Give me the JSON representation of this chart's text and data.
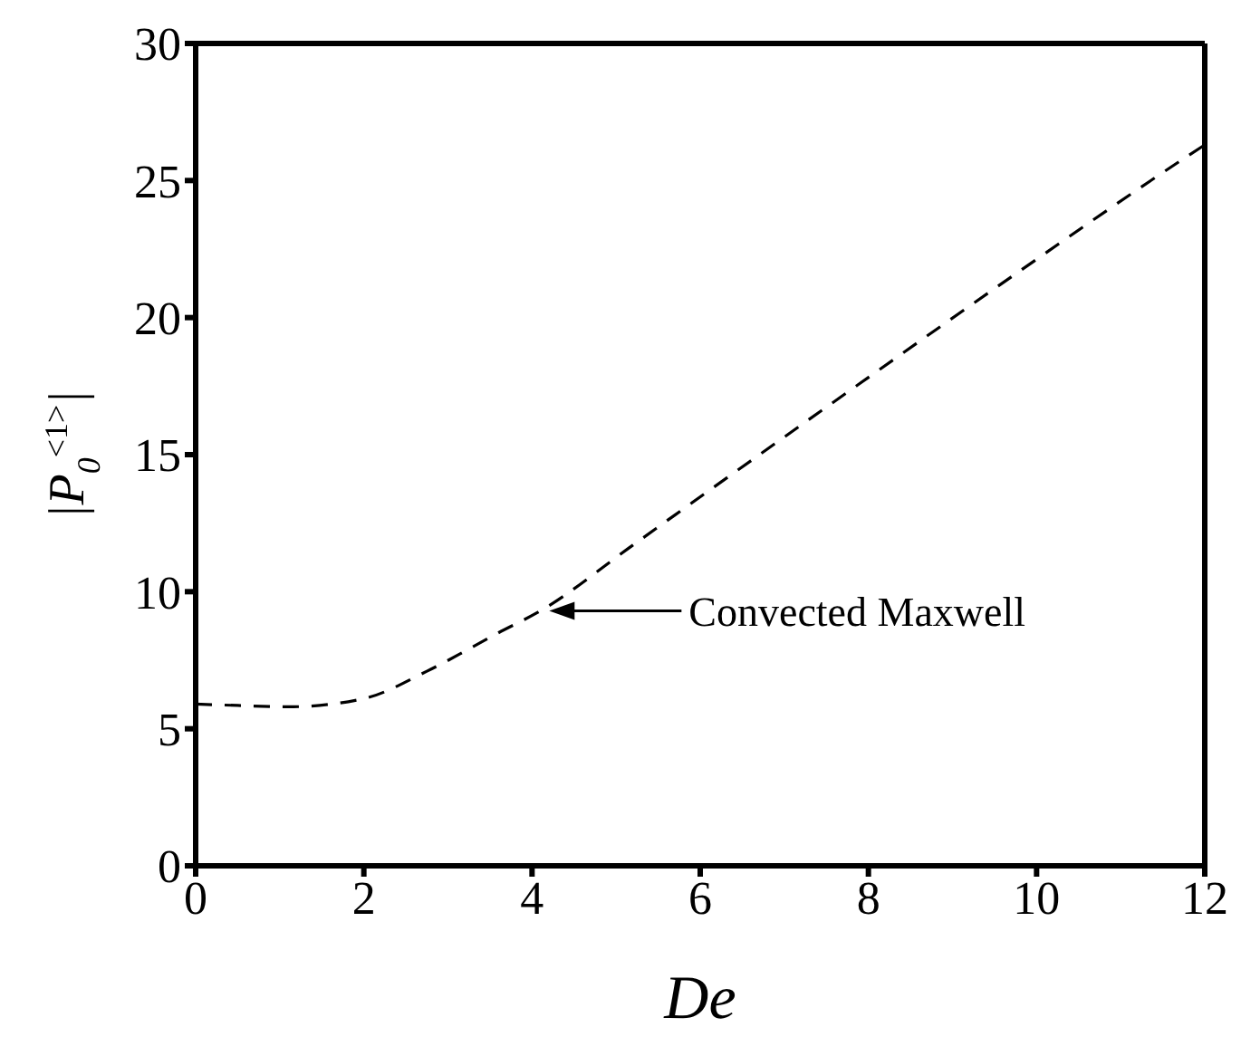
{
  "chart_data": {
    "type": "line",
    "xlabel": "De",
    "ylabel": "|P$_{0}$$^{<1>}$|",
    "x": [
      0,
      0.5,
      1.1,
      2,
      2.75,
      3.6,
      4.1,
      5.2,
      5.7,
      7.9,
      9.8,
      11.8,
      12
    ],
    "series": [
      {
        "color": "#000000",
        "line_style": "dashed",
        "values": [
          5.9,
          5.85,
          5.8,
          6.1,
          7.1,
          8.5,
          9.3,
          11.7,
          12.8,
          17.6,
          21.7,
          25.9,
          26.3
        ]
      }
    ],
    "annotations": [
      "Convected Maxwell"
    ],
    "xlim": [
      0,
      12
    ],
    "xticks": [
      0,
      2,
      4,
      6,
      8,
      10,
      12
    ],
    "ylim": [
      0,
      30
    ],
    "yticks": [
      0,
      5,
      10,
      15,
      20,
      25,
      30
    ],
    "grid": false,
    "legend": false,
    "marker": "none"
  }
}
